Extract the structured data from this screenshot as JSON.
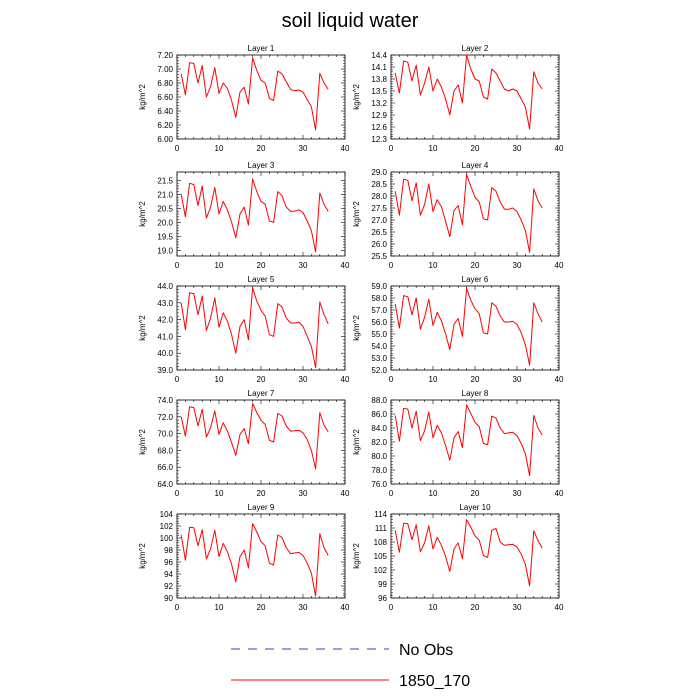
{
  "figure": {
    "title": "soil liquid water",
    "legend": [
      {
        "label": "No Obs",
        "color": "#3a3acc",
        "style": "dashed"
      },
      {
        "label": "1850_170",
        "color": "#ff0000",
        "style": "solid"
      }
    ]
  },
  "chart_data": [
    {
      "type": "line",
      "title": "Layer 1",
      "ylabel": "kg/m^2",
      "xlim": [
        0,
        40
      ],
      "ylim": [
        6.0,
        7.2
      ],
      "xticks": [
        0,
        10,
        20,
        30,
        40
      ],
      "yticks": [
        "6.00",
        "6.20",
        "6.40",
        "6.60",
        "6.80",
        "7.00",
        "7.20"
      ],
      "series": [
        {
          "name": "1850_170",
          "color": "#ff0000",
          "x": [
            1,
            2,
            3,
            4,
            5,
            6,
            7,
            8,
            9,
            10,
            11,
            12,
            13,
            14,
            15,
            16,
            17,
            18,
            19,
            20,
            21,
            22,
            23,
            24,
            25,
            26,
            27,
            28,
            29,
            30,
            31,
            32,
            33,
            34,
            35,
            36
          ],
          "y": [
            6.93,
            6.63,
            7.09,
            7.08,
            6.8,
            7.05,
            6.6,
            6.75,
            7.02,
            6.65,
            6.8,
            6.72,
            6.55,
            6.31,
            6.67,
            6.74,
            6.5,
            7.16,
            6.98,
            6.84,
            6.8,
            6.58,
            6.55,
            6.97,
            6.93,
            6.82,
            6.71,
            6.69,
            6.7,
            6.67,
            6.56,
            6.46,
            6.13,
            6.94,
            6.8,
            6.71
          ]
        }
      ]
    },
    {
      "type": "line",
      "title": "Layer 2",
      "ylabel": "kg/m^2",
      "xlim": [
        0,
        40
      ],
      "ylim": [
        12.3,
        14.4
      ],
      "xticks": [
        0,
        10,
        20,
        30,
        40
      ],
      "yticks": [
        "12.3",
        "12.6",
        "12.9",
        "13.2",
        "13.5",
        "13.8",
        "14.1",
        "14.4"
      ],
      "series": [
        {
          "name": "1850_170",
          "color": "#ff0000",
          "x": [
            1,
            2,
            3,
            4,
            5,
            6,
            7,
            8,
            9,
            10,
            11,
            12,
            13,
            14,
            15,
            16,
            17,
            18,
            19,
            20,
            21,
            22,
            23,
            24,
            25,
            26,
            27,
            28,
            29,
            30,
            31,
            32,
            33,
            34,
            35,
            36
          ],
          "y": [
            13.95,
            13.45,
            14.25,
            14.22,
            13.75,
            14.15,
            13.4,
            13.7,
            14.1,
            13.5,
            13.8,
            13.6,
            13.3,
            12.9,
            13.5,
            13.65,
            13.2,
            14.4,
            14.05,
            13.8,
            13.75,
            13.35,
            13.3,
            14.05,
            13.95,
            13.75,
            13.55,
            13.5,
            13.55,
            13.5,
            13.3,
            13.1,
            12.55,
            13.98,
            13.7,
            13.55
          ]
        }
      ]
    },
    {
      "type": "line",
      "title": "Layer 3",
      "ylabel": "kg/m^2",
      "xlim": [
        0,
        40
      ],
      "ylim": [
        18.8,
        21.8
      ],
      "xticks": [
        0,
        10,
        20,
        30,
        40
      ],
      "yticks": [
        "19.0",
        "19.5",
        "20.0",
        "20.5",
        "21.0",
        "21.5"
      ],
      "series": [
        {
          "name": "1850_170",
          "color": "#ff0000",
          "x": [
            1,
            2,
            3,
            4,
            5,
            6,
            7,
            8,
            9,
            10,
            11,
            12,
            13,
            14,
            15,
            16,
            17,
            18,
            19,
            20,
            21,
            22,
            23,
            24,
            25,
            26,
            27,
            28,
            29,
            30,
            31,
            32,
            33,
            34,
            35,
            36
          ],
          "y": [
            21.0,
            20.2,
            21.4,
            21.35,
            20.6,
            21.3,
            20.15,
            20.55,
            21.25,
            20.3,
            20.75,
            20.45,
            20.0,
            19.45,
            20.3,
            20.55,
            19.9,
            21.55,
            21.1,
            20.75,
            20.65,
            20.05,
            20.0,
            21.1,
            20.95,
            20.55,
            20.4,
            20.4,
            20.45,
            20.35,
            20.05,
            19.7,
            18.95,
            21.05,
            20.65,
            20.4
          ]
        }
      ]
    },
    {
      "type": "line",
      "title": "Layer 4",
      "ylabel": "kg/m^2",
      "xlim": [
        0,
        40
      ],
      "ylim": [
        25.5,
        29.0
      ],
      "xticks": [
        0,
        10,
        20,
        30,
        40
      ],
      "yticks": [
        "25.5",
        "26.0",
        "26.5",
        "27.0",
        "27.5",
        "28.0",
        "28.5",
        "29.0"
      ],
      "series": [
        {
          "name": "1850_170",
          "color": "#ff0000",
          "x": [
            1,
            2,
            3,
            4,
            5,
            6,
            7,
            8,
            9,
            10,
            11,
            12,
            13,
            14,
            15,
            16,
            17,
            18,
            19,
            20,
            21,
            22,
            23,
            24,
            25,
            26,
            27,
            28,
            29,
            30,
            31,
            32,
            33,
            34,
            35,
            36
          ],
          "y": [
            28.2,
            27.2,
            28.7,
            28.65,
            27.8,
            28.55,
            27.2,
            27.65,
            28.5,
            27.35,
            27.85,
            27.55,
            26.95,
            26.3,
            27.4,
            27.6,
            26.8,
            28.9,
            28.4,
            27.95,
            27.75,
            27.05,
            27.0,
            28.35,
            28.2,
            27.75,
            27.45,
            27.45,
            27.5,
            27.35,
            27.0,
            26.55,
            25.65,
            28.3,
            27.8,
            27.5
          ]
        }
      ]
    },
    {
      "type": "line",
      "title": "Layer 5",
      "ylabel": "kg/m^2",
      "xlim": [
        0,
        40
      ],
      "ylim": [
        39.0,
        44.0
      ],
      "xticks": [
        0,
        10,
        20,
        30,
        40
      ],
      "yticks": [
        "39.0",
        "40.0",
        "41.0",
        "42.0",
        "43.0",
        "44.0"
      ],
      "series": [
        {
          "name": "1850_170",
          "color": "#ff0000",
          "x": [
            1,
            2,
            3,
            4,
            5,
            6,
            7,
            8,
            9,
            10,
            11,
            12,
            13,
            14,
            15,
            16,
            17,
            18,
            19,
            20,
            21,
            22,
            23,
            24,
            25,
            26,
            27,
            28,
            29,
            30,
            31,
            32,
            33,
            34,
            35,
            36
          ],
          "y": [
            43.0,
            41.4,
            43.6,
            43.55,
            42.3,
            43.4,
            41.35,
            42.1,
            43.3,
            41.55,
            42.4,
            41.9,
            41.1,
            40.0,
            41.6,
            42.0,
            40.8,
            43.9,
            43.1,
            42.55,
            42.2,
            41.1,
            41.0,
            42.95,
            42.75,
            42.1,
            41.8,
            41.8,
            41.85,
            41.6,
            41.0,
            40.4,
            39.15,
            43.05,
            42.3,
            41.75
          ]
        }
      ]
    },
    {
      "type": "line",
      "title": "Layer 6",
      "ylabel": "kg/m^2",
      "xlim": [
        0,
        40
      ],
      "ylim": [
        52.0,
        59.0
      ],
      "xticks": [
        0,
        10,
        20,
        30,
        40
      ],
      "yticks": [
        "52.0",
        "53.0",
        "54.0",
        "55.0",
        "56.0",
        "57.0",
        "58.0",
        "59.0"
      ],
      "series": [
        {
          "name": "1850_170",
          "color": "#ff0000",
          "x": [
            1,
            2,
            3,
            4,
            5,
            6,
            7,
            8,
            9,
            10,
            11,
            12,
            13,
            14,
            15,
            16,
            17,
            18,
            19,
            20,
            21,
            22,
            23,
            24,
            25,
            26,
            27,
            28,
            29,
            30,
            31,
            32,
            33,
            34,
            35,
            36
          ],
          "y": [
            57.5,
            55.5,
            58.2,
            58.1,
            56.6,
            58.0,
            55.4,
            56.4,
            57.9,
            55.7,
            56.8,
            56.1,
            55.0,
            53.7,
            55.8,
            56.3,
            54.8,
            58.8,
            57.8,
            57.1,
            56.7,
            55.1,
            55.0,
            57.6,
            57.3,
            56.5,
            56.0,
            56.0,
            56.05,
            55.8,
            55.1,
            54.1,
            52.4,
            57.6,
            56.7,
            56.0
          ]
        }
      ]
    },
    {
      "type": "line",
      "title": "Layer 7",
      "ylabel": "kg/m^2",
      "xlim": [
        0,
        40
      ],
      "ylim": [
        64.0,
        74.0
      ],
      "xticks": [
        0,
        10,
        20,
        30,
        40
      ],
      "yticks": [
        "64.0",
        "66.0",
        "68.0",
        "70.0",
        "72.0",
        "74.0"
      ],
      "series": [
        {
          "name": "1850_170",
          "color": "#ff0000",
          "x": [
            1,
            2,
            3,
            4,
            5,
            6,
            7,
            8,
            9,
            10,
            11,
            12,
            13,
            14,
            15,
            16,
            17,
            18,
            19,
            20,
            21,
            22,
            23,
            24,
            25,
            26,
            27,
            28,
            29,
            30,
            31,
            32,
            33,
            34,
            35,
            36
          ],
          "y": [
            72.0,
            69.7,
            73.2,
            73.1,
            70.9,
            72.9,
            69.6,
            70.7,
            72.7,
            69.9,
            71.3,
            70.3,
            68.9,
            67.4,
            69.9,
            70.6,
            68.8,
            73.6,
            72.5,
            71.6,
            71.1,
            69.2,
            69.0,
            72.4,
            72.1,
            70.9,
            70.3,
            70.35,
            70.4,
            70.1,
            69.3,
            68.0,
            65.8,
            72.5,
            71.0,
            70.2
          ]
        }
      ]
    },
    {
      "type": "line",
      "title": "Layer 8",
      "ylabel": "kg/m^2",
      "xlim": [
        0,
        40
      ],
      "ylim": [
        76.0,
        88.0
      ],
      "xticks": [
        0,
        10,
        20,
        30,
        40
      ],
      "yticks": [
        "76.0",
        "78.0",
        "80.0",
        "82.0",
        "84.0",
        "86.0",
        "88.0"
      ],
      "series": [
        {
          "name": "1850_170",
          "color": "#ff0000",
          "x": [
            1,
            2,
            3,
            4,
            5,
            6,
            7,
            8,
            9,
            10,
            11,
            12,
            13,
            14,
            15,
            16,
            17,
            18,
            19,
            20,
            21,
            22,
            23,
            24,
            25,
            26,
            27,
            28,
            29,
            30,
            31,
            32,
            33,
            34,
            35,
            36
          ],
          "y": [
            85.8,
            82.1,
            86.8,
            86.7,
            84.0,
            86.4,
            82.2,
            83.6,
            86.3,
            82.6,
            84.4,
            83.3,
            81.5,
            79.4,
            82.6,
            83.5,
            81.2,
            87.3,
            86.1,
            84.8,
            84.2,
            81.8,
            81.6,
            85.7,
            85.4,
            84.0,
            83.2,
            83.3,
            83.4,
            82.9,
            81.8,
            80.3,
            77.2,
            85.8,
            84.0,
            83.0
          ]
        }
      ]
    },
    {
      "type": "line",
      "title": "Layer 9",
      "ylabel": "kg/m^2",
      "xlim": [
        0,
        40
      ],
      "ylim": [
        90,
        104
      ],
      "xticks": [
        0,
        10,
        20,
        30,
        40
      ],
      "yticks": [
        "90",
        "92",
        "94",
        "96",
        "98",
        "100",
        "102",
        "104"
      ],
      "series": [
        {
          "name": "1850_170",
          "color": "#ff0000",
          "x": [
            1,
            2,
            3,
            4,
            5,
            6,
            7,
            8,
            9,
            10,
            11,
            12,
            13,
            14,
            15,
            16,
            17,
            18,
            19,
            20,
            21,
            22,
            23,
            24,
            25,
            26,
            27,
            28,
            29,
            30,
            31,
            32,
            33,
            34,
            35,
            36
          ],
          "y": [
            100.5,
            96.3,
            101.8,
            101.7,
            98.7,
            101.4,
            96.5,
            98.2,
            101.3,
            96.9,
            99.1,
            97.7,
            95.6,
            92.7,
            96.9,
            98.0,
            95.0,
            102.4,
            101.0,
            99.4,
            98.7,
            95.8,
            95.5,
            100.5,
            100.1,
            98.4,
            97.4,
            97.5,
            97.6,
            97.1,
            95.8,
            94.1,
            90.3,
            100.7,
            98.4,
            97.1
          ]
        }
      ]
    },
    {
      "type": "line",
      "title": "Layer 10",
      "ylabel": "kg/m^2",
      "xlim": [
        0,
        40
      ],
      "ylim": [
        96,
        114
      ],
      "xticks": [
        0,
        10,
        20,
        30,
        40
      ],
      "yticks": [
        "96",
        "99",
        "102",
        "105",
        "108",
        "111",
        "114"
      ],
      "series": [
        {
          "name": "1850_170",
          "color": "#ff0000",
          "x": [
            1,
            2,
            3,
            4,
            5,
            6,
            7,
            8,
            9,
            10,
            11,
            12,
            13,
            14,
            15,
            16,
            17,
            18,
            19,
            20,
            21,
            22,
            23,
            24,
            25,
            26,
            27,
            28,
            29,
            30,
            31,
            32,
            33,
            34,
            35,
            36
          ],
          "y": [
            110.5,
            105.8,
            112.0,
            111.9,
            108.5,
            111.7,
            105.9,
            107.8,
            111.5,
            106.5,
            109.0,
            107.3,
            104.9,
            101.7,
            106.5,
            107.8,
            104.4,
            112.8,
            111.2,
            109.3,
            108.4,
            105.1,
            104.7,
            110.5,
            110.9,
            108.0,
            107.3,
            107.4,
            107.5,
            106.9,
            105.4,
            103.2,
            98.6,
            110.4,
            108.3,
            106.7
          ]
        }
      ]
    }
  ]
}
